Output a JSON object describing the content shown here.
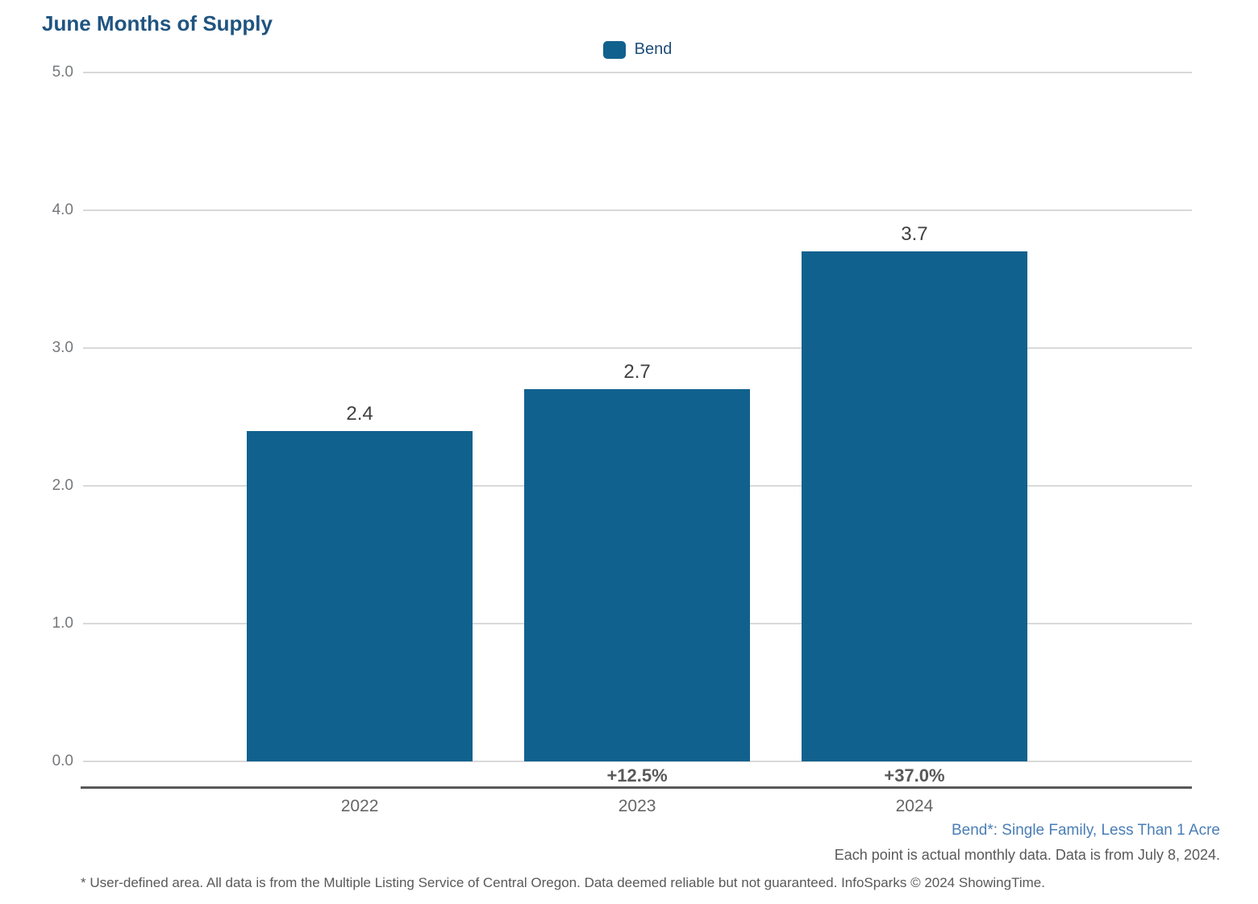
{
  "title": "June Months of Supply",
  "legend": {
    "label": "Bend",
    "swatch_color": "#11618E"
  },
  "chart_data": {
    "type": "bar",
    "title": "June Months of Supply",
    "series_name": "Bend",
    "categories": [
      "2022",
      "2023",
      "2024"
    ],
    "values": [
      2.4,
      2.7,
      3.7
    ],
    "value_labels": [
      "2.4",
      "2.7",
      "3.7"
    ],
    "pct_change_labels": [
      "",
      "+12.5%",
      "+37.0%"
    ],
    "ylim": [
      0,
      5
    ],
    "yticks": [
      "5.0",
      "4.0",
      "3.0",
      "2.0",
      "1.0",
      "0.0"
    ],
    "grid": "horizontal-on",
    "legend_position": "top-center",
    "bar_color": "#11618E"
  },
  "colors": {
    "title": "#1F5480",
    "bar": "#11618E",
    "legend_text": "#1F4E79",
    "segment_note": "#4A7EB5",
    "axis_line": "#595959",
    "gridline": "#D9D9D9"
  },
  "footnotes": {
    "segment": "Bend*: Single Family, Less Than 1 Acre",
    "data_note": "Each point is actual monthly data. Data is from July 8, 2024.",
    "disclaimer": "* User-defined area. All data is from the Multiple Listing Service of Central Oregon. Data deemed reliable but not guaranteed. InfoSparks © 2024 ShowingTime."
  }
}
